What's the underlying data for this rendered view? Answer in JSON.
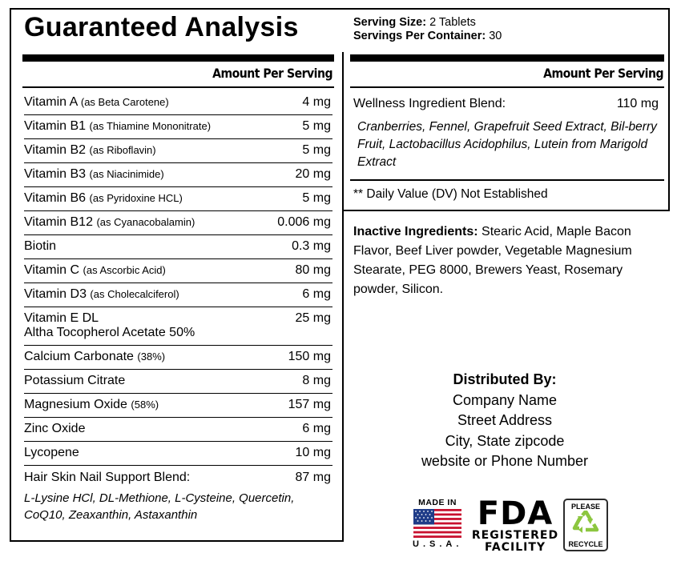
{
  "title": "Guaranteed Analysis",
  "serving": {
    "size_label": "Serving Size:",
    "size_value": "2 Tablets",
    "per_container_label": "Servings Per Container:",
    "per_container_value": "30"
  },
  "amount_header": "Amount Per Serving",
  "nutrients": [
    {
      "name": "Vitamin A",
      "detail": "(as Beta Carotene)",
      "amount": "4 mg"
    },
    {
      "name": "Vitamin B1",
      "detail": "(as Thiamine Mononitrate)",
      "amount": "5 mg"
    },
    {
      "name": "Vitamin B2",
      "detail": "(as Riboflavin)",
      "amount": "5 mg"
    },
    {
      "name": "Vitamin B3",
      "detail": "(as Niacinimide)",
      "amount": "20 mg"
    },
    {
      "name": "Vitamin B6",
      "detail": "(as Pyridoxine HCL)",
      "amount": "5 mg"
    },
    {
      "name": "Vitamin B12",
      "detail": "(as Cyanacobalamin)",
      "amount": "0.006 mg"
    },
    {
      "name": "Biotin",
      "detail": "",
      "amount": "0.3 mg"
    },
    {
      "name": "Vitamin C",
      "detail": "(as Ascorbic Acid)",
      "amount": "80 mg"
    },
    {
      "name": "Vitamin D3",
      "detail": "(as Cholecalciferol)",
      "amount": "6 mg"
    },
    {
      "name": "Vitamin E DL",
      "detail": "",
      "line2": "Altha Tocopherol Acetate 50%",
      "amount": "25 mg"
    },
    {
      "name": "Calcium Carbonate",
      "detail": "(38%)",
      "amount": "150 mg"
    },
    {
      "name": "Potassium Citrate",
      "detail": "",
      "amount": "8 mg"
    },
    {
      "name": "Magnesium Oxide",
      "detail": "(58%)",
      "amount": "157 mg"
    },
    {
      "name": "Zinc Oxide",
      "detail": "",
      "amount": "6 mg"
    },
    {
      "name": "Lycopene",
      "detail": "",
      "amount": "10 mg"
    }
  ],
  "hair_blend": {
    "name": "Hair Skin Nail Support Blend:",
    "amount": "87 mg",
    "ingredients": "L-Lysine HCl, DL-Methione, L-Cysteine, Quercetin, CoQ10, Zeaxanthin, Astaxanthin"
  },
  "wellness_blend": {
    "name": "Wellness Ingredient Blend:",
    "amount": "110 mg",
    "ingredients": "Cranberries, Fennel, Grapefruit Seed Extract, Bil-berry Fruit, Lactobacillus Acidophilus, Lutein from Marigold Extract"
  },
  "dv_note": "** Daily Value (DV) Not Established",
  "inactive": {
    "label": "Inactive Ingredients:",
    "text": "Stearic Acid, Maple Bacon Flavor, Beef Liver powder, Vegetable Magnesium Stearate, PEG 8000, Brewers Yeast, Rosemary powder, Silicon."
  },
  "distributor": {
    "heading": "Distributed By:",
    "company": "Company Name",
    "street": "Street Address",
    "city": "City, State zipcode",
    "contact": "website or  Phone Number"
  },
  "badges": {
    "made_in": "MADE IN",
    "usa": "U.S.A.",
    "fda_big": "FDA",
    "fda_line1": "REGISTERED",
    "fda_line2": "FACILITY",
    "recycle_top": "PLEASE",
    "recycle_bottom": "RECYCLE",
    "recycle_color": "#8cc63f"
  }
}
